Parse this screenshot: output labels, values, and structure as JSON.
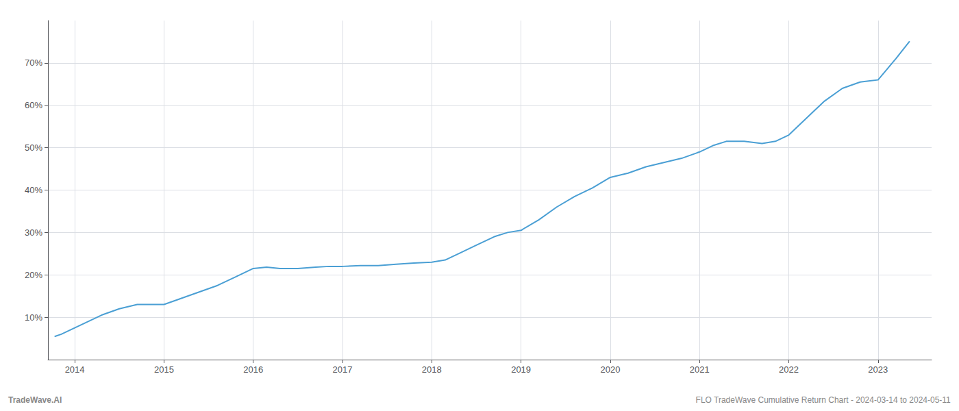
{
  "chart_data": {
    "type": "line",
    "x": [
      2013.78,
      2013.85,
      2014.0,
      2014.15,
      2014.3,
      2014.5,
      2014.7,
      2014.85,
      2015.0,
      2015.2,
      2015.4,
      2015.6,
      2015.8,
      2016.0,
      2016.15,
      2016.3,
      2016.5,
      2016.7,
      2016.85,
      2017.0,
      2017.2,
      2017.4,
      2017.6,
      2017.8,
      2018.0,
      2018.15,
      2018.3,
      2018.5,
      2018.7,
      2018.85,
      2019.0,
      2019.2,
      2019.4,
      2019.6,
      2019.8,
      2020.0,
      2020.2,
      2020.4,
      2020.6,
      2020.8,
      2021.0,
      2021.15,
      2021.3,
      2021.5,
      2021.7,
      2021.85,
      2022.0,
      2022.2,
      2022.4,
      2022.6,
      2022.8,
      2023.0,
      2023.2,
      2023.35
    ],
    "values": [
      5.5,
      6.0,
      7.5,
      9.0,
      10.5,
      12.0,
      13.0,
      13.0,
      13.0,
      14.5,
      16.0,
      17.5,
      19.5,
      21.5,
      21.8,
      21.5,
      21.5,
      21.8,
      22.0,
      22.0,
      22.2,
      22.2,
      22.5,
      22.8,
      23.0,
      23.5,
      25.0,
      27.0,
      29.0,
      30.0,
      30.5,
      33.0,
      36.0,
      38.5,
      40.5,
      43.0,
      44.0,
      45.5,
      46.5,
      47.5,
      49.0,
      50.5,
      51.5,
      51.5,
      51.0,
      51.5,
      53.0,
      57.0,
      61.0,
      64.0,
      65.5,
      66.0,
      71.0,
      75.0
    ],
    "color": "#4a9fd4",
    "xlim": [
      2013.7,
      2023.6
    ],
    "xticks": [
      2014,
      2015,
      2016,
      2017,
      2018,
      2019,
      2020,
      2021,
      2022,
      2023
    ],
    "ylim": [
      0,
      80
    ],
    "yticks": [
      {
        "value": 10,
        "label": "10%"
      },
      {
        "value": 20,
        "label": "20%"
      },
      {
        "value": 30,
        "label": "30%"
      },
      {
        "value": 40,
        "label": "40%"
      },
      {
        "value": 50,
        "label": "50%"
      },
      {
        "value": 60,
        "label": "60%"
      },
      {
        "value": 70,
        "label": "70%"
      }
    ],
    "grid": true,
    "annotations": [
      "TradeWave.AI",
      "FLO TradeWave Cumulative Return Chart - 2024-03-14 to 2024-05-11"
    ]
  }
}
